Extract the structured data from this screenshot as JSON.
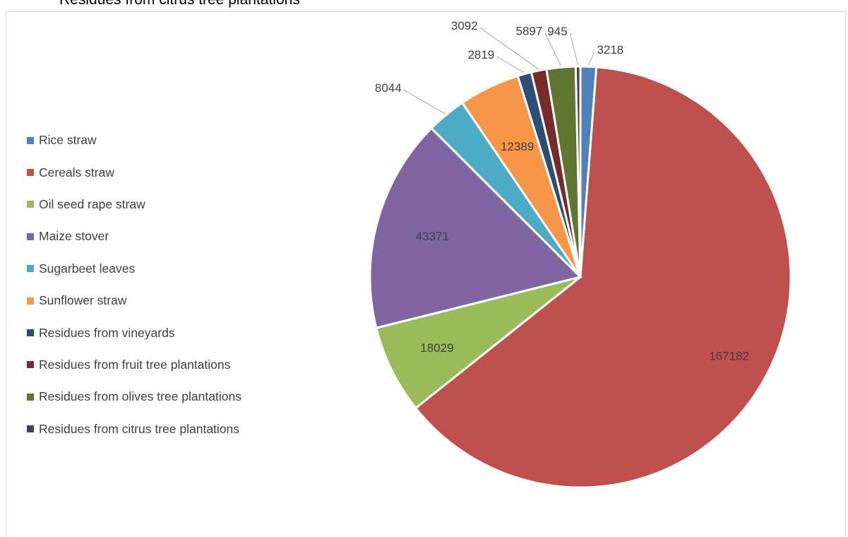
{
  "caption": "Residues from citrus tree plantations",
  "chart_data": {
    "type": "pie",
    "categories": [
      "Rice straw",
      "Cereals straw",
      "Oil seed rape straw",
      "Maize stover",
      "Sugarbeet leaves",
      "Sunflower straw",
      "Residues from vineyards",
      "Residues from fruit tree plantations",
      "Residues from olives tree plantations",
      "Residues from citrus tree plantations"
    ],
    "values": [
      3218,
      167182,
      18029,
      43371,
      8044,
      12389,
      2819,
      3092,
      5897,
      945
    ],
    "colors": [
      "#4f81bd",
      "#c0504d",
      "#9bbb59",
      "#8064a2",
      "#4bacc6",
      "#f79646",
      "#2c4d75",
      "#772c2a",
      "#5f7530",
      "#4d3b62"
    ],
    "legend_position": "left",
    "data_labels": true
  }
}
